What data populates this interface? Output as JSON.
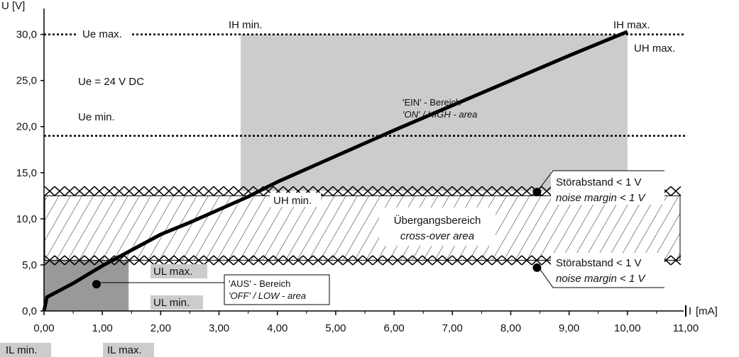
{
  "chart_data": {
    "type": "line",
    "title": "",
    "xlabel": "[mA]",
    "ylabel": "U [V]",
    "xlim": [
      0,
      11
    ],
    "ylim": [
      0,
      31.5
    ],
    "x_ticks": [
      "0,00",
      "1,00",
      "2,00",
      "3,00",
      "4,00",
      "5,00",
      "6,00",
      "7,00",
      "8,00",
      "9,00",
      "10,00",
      "11,00"
    ],
    "y_ticks": [
      "0,0",
      "5,0",
      "10,0",
      "15,0",
      "20,0",
      "25,0",
      "30,0"
    ],
    "x_axis_symbol": "I",
    "series": [
      {
        "x": [
          0.0,
          0.05,
          0.5,
          1.0,
          1.5,
          2.0,
          2.5,
          3.0,
          3.5,
          4.0,
          5.0,
          6.0,
          7.0,
          8.0,
          9.0,
          10.0
        ],
        "y": [
          0.0,
          1.5,
          3.0,
          4.9,
          6.6,
          8.3,
          9.6,
          11.0,
          12.4,
          14.0,
          16.8,
          19.6,
          22.3,
          25.0,
          27.7,
          30.3
        ]
      }
    ],
    "reference_lines": {
      "ue_max": {
        "value": 30.0,
        "label": "Ue max."
      },
      "ue_min": {
        "value": 19.0,
        "label": "Ue min."
      }
    },
    "regions": {
      "on": {
        "x": [
          3.37,
          10.0
        ],
        "y": [
          13.0,
          30.0
        ],
        "label_de": "'EIN' - Bereich",
        "label_en": "'ON' / HIGH - area"
      },
      "off": {
        "x": [
          0.0,
          1.45
        ],
        "y": [
          0.0,
          5.5
        ],
        "label_de": "'AUS' - Bereich",
        "label_en": "'OFF' / LOW - area"
      },
      "crossover": {
        "x": [
          0.0,
          11.0
        ],
        "y": [
          5.5,
          12.5
        ],
        "label_de": "Übergangsbereich",
        "label_en": "cross-over area"
      },
      "noise_upper": {
        "y": [
          12.5,
          13.5
        ]
      },
      "noise_lower": {
        "y": [
          5.0,
          6.0
        ]
      }
    },
    "annotations": {
      "ue": "Ue = 24 V DC",
      "ih_min": "IH min.",
      "ih_max": "IH max.",
      "uh_max": "UH max.",
      "uh_min": "UH min.",
      "ul_max": "UL max.",
      "ul_min": "UL min.",
      "il_min": "IL min.",
      "il_max": "IL max.",
      "noise_de": "Störabstand < 1 V",
      "noise_en": "noise margin < 1 V"
    },
    "markers": [
      {
        "x": 0.9,
        "y": 2.9,
        "label": "aus"
      },
      {
        "x": 8.45,
        "y": 12.9,
        "label": "noise-upper"
      },
      {
        "x": 8.45,
        "y": 4.7,
        "label": "noise-lower"
      }
    ],
    "grid": false,
    "legend": "none",
    "colors": {
      "on_region": "#cccccc",
      "off_region": "#999999",
      "label_box": "#cccccc",
      "line": "#000000"
    }
  }
}
